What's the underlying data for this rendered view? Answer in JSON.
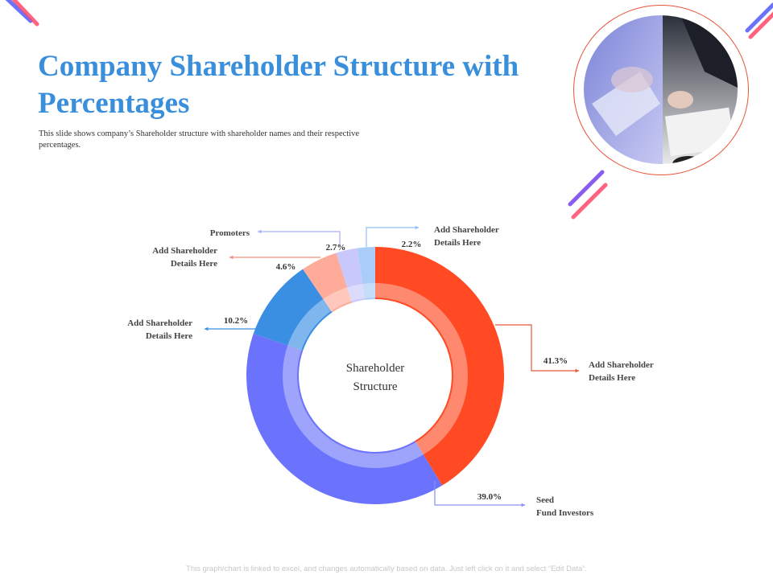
{
  "title": "Company Shareholder Structure with Percentages",
  "subtitle": "This slide shows company’s Shareholder structure with shareholder names and their respective percentages.",
  "footer": "This graph/chart is linked to excel, and changes automatically based on data. Just left click on it and select “Edit Data”.",
  "colors": {
    "accent": "#3a8fdc",
    "slice_red": "#ff4a23",
    "slice_blue": "#6b72fb",
    "slice_mid_blue": "#3a8fe3",
    "slice_peach": "#ffab9a",
    "slice_lavender": "#c8c8fb",
    "slice_light_blue": "#a9cdf8"
  },
  "chart_data": {
    "type": "pie",
    "style": "donut",
    "center_label": [
      "Shareholder",
      "Structure"
    ],
    "slices": [
      {
        "name": "Add Shareholder Details Here",
        "label_lines": [
          "Add Shareholder",
          "Details Here"
        ],
        "value": 41.3,
        "value_label": "41.3%",
        "color": "#ff4a23"
      },
      {
        "name": "Seed Fund Investors",
        "label_lines": [
          "Seed",
          "Fund Investors"
        ],
        "value": 39.0,
        "value_label": "39.0%",
        "color": "#6b72fb"
      },
      {
        "name": "Add Shareholder Details Here",
        "label_lines": [
          "Add Shareholder",
          "Details Here"
        ],
        "value": 10.2,
        "value_label": "10.2%",
        "color": "#3a8fe3"
      },
      {
        "name": "Add Shareholder Details Here",
        "label_lines": [
          "Add Shareholder",
          "Details Here"
        ],
        "value": 4.6,
        "value_label": "4.6%",
        "color": "#ffab9a"
      },
      {
        "name": "Promoters",
        "label_lines": [
          "Promoters"
        ],
        "value": 2.7,
        "value_label": "2.7%",
        "color": "#c8c8fb"
      },
      {
        "name": "Add Shareholder Details Here",
        "label_lines": [
          "Add Shareholder",
          "Details Here"
        ],
        "value": 2.2,
        "value_label": "2.2%",
        "color": "#a9cdf8"
      }
    ]
  }
}
